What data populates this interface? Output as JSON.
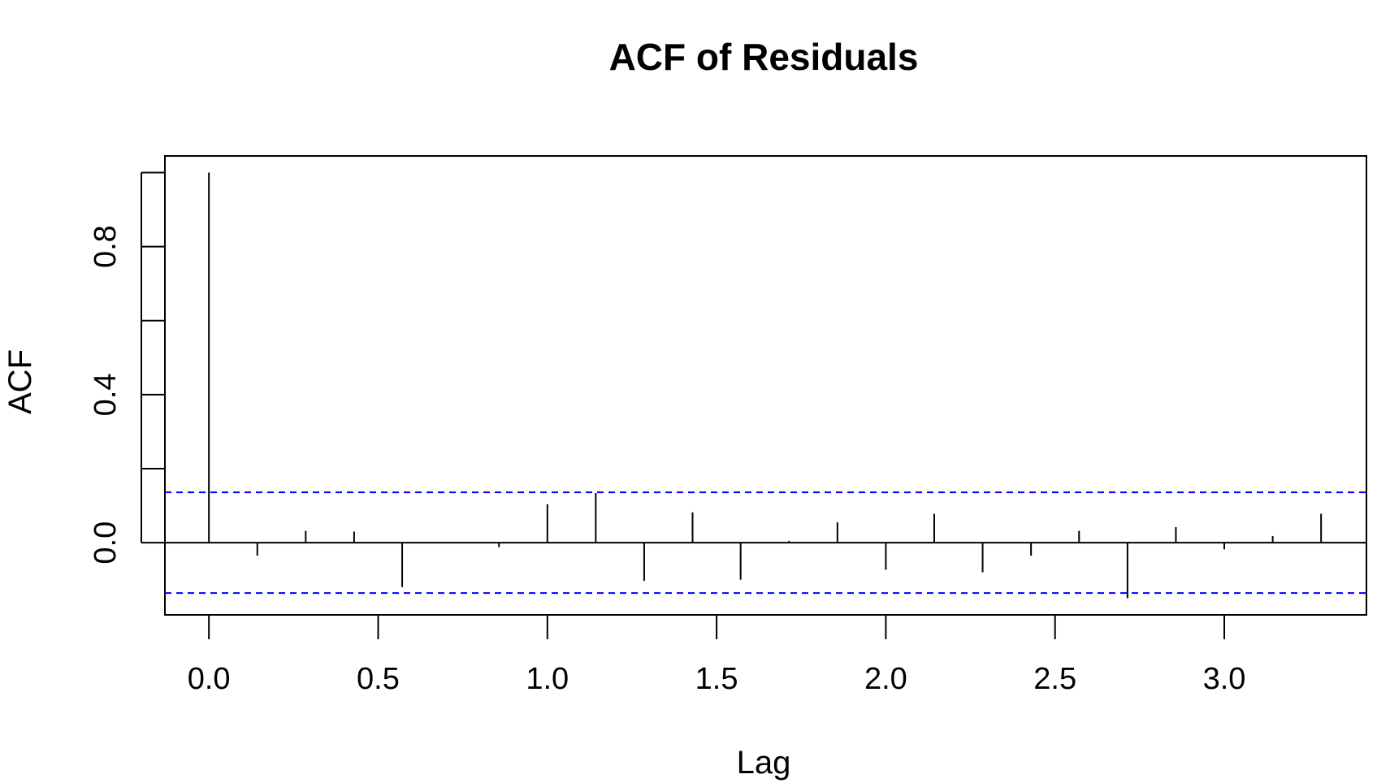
{
  "chart_data": {
    "type": "bar",
    "title": "ACF of Residuals",
    "xlabel": "Lag",
    "ylabel": "ACF",
    "xlim": [
      -0.13,
      3.42
    ],
    "ylim": [
      -0.195,
      1.045
    ],
    "x_ticks": [
      0.0,
      0.5,
      1.0,
      1.5,
      2.0,
      2.5,
      3.0
    ],
    "x_tick_labels": [
      "0.0",
      "0.5",
      "1.0",
      "1.5",
      "2.0",
      "2.5",
      "3.0"
    ],
    "y_ticks": [
      0.0,
      0.2,
      0.4,
      0.6,
      0.8,
      1.0
    ],
    "y_tick_labels": [
      "0.0",
      "",
      "0.4",
      "",
      "0.8",
      ""
    ],
    "grid": false,
    "confidence_bound": 0.136,
    "colors": {
      "bars": "#000000",
      "confidence": "#0000ff",
      "zero_line": "#000000"
    },
    "series": [
      {
        "lags": [
          0.0,
          0.143,
          0.286,
          0.429,
          0.571,
          0.714,
          0.857,
          1.0,
          1.143,
          1.286,
          1.429,
          1.571,
          1.714,
          1.857,
          2.0,
          2.143,
          2.286,
          2.429,
          2.571,
          2.714,
          2.857,
          3.0,
          3.143,
          3.286
        ],
        "values": [
          1.0,
          -0.035,
          0.032,
          0.03,
          -0.12,
          0.0,
          -0.012,
          0.104,
          0.134,
          -0.103,
          0.082,
          -0.1,
          0.005,
          0.055,
          -0.073,
          0.078,
          -0.08,
          -0.035,
          0.032,
          -0.15,
          0.042,
          -0.018,
          0.018,
          0.078
        ]
      }
    ]
  }
}
